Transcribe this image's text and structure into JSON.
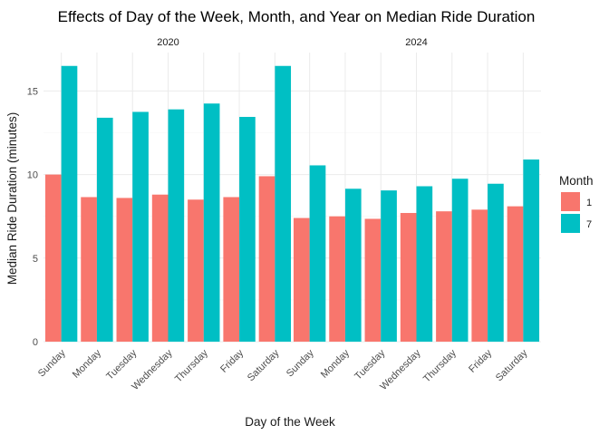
{
  "chart_data": {
    "type": "bar",
    "title": "Effects of Day of the Week, Month, and Year on Median Ride Duration",
    "xlabel": "Day of the Week",
    "ylabel": "Median Ride Duration (minutes)",
    "categories": [
      "Sunday",
      "Monday",
      "Tuesday",
      "Wednesday",
      "Thursday",
      "Friday",
      "Saturday"
    ],
    "ylim": [
      0,
      17.3
    ],
    "yticks": [
      0,
      5,
      10,
      15
    ],
    "grid": true,
    "legend": {
      "title": "Month",
      "position": "right",
      "entries": [
        {
          "label": "1",
          "color": "#F8766D"
        },
        {
          "label": "7",
          "color": "#00BFC4"
        }
      ]
    },
    "panels": [
      {
        "strip": "2020",
        "series": [
          {
            "name": "1",
            "color": "#F8766D",
            "values": [
              10.0,
              8.65,
              8.6,
              8.8,
              8.5,
              8.65,
              9.9
            ]
          },
          {
            "name": "7",
            "color": "#00BFC4",
            "values": [
              16.5,
              13.4,
              13.75,
              13.9,
              14.25,
              13.45,
              16.5
            ]
          }
        ]
      },
      {
        "strip": "2024",
        "series": [
          {
            "name": "1",
            "color": "#F8766D",
            "values": [
              7.4,
              7.5,
              7.35,
              7.7,
              7.8,
              7.9,
              8.1
            ]
          },
          {
            "name": "7",
            "color": "#00BFC4",
            "values": [
              10.55,
              9.15,
              9.05,
              9.3,
              9.75,
              9.45,
              10.9
            ]
          }
        ]
      }
    ]
  }
}
